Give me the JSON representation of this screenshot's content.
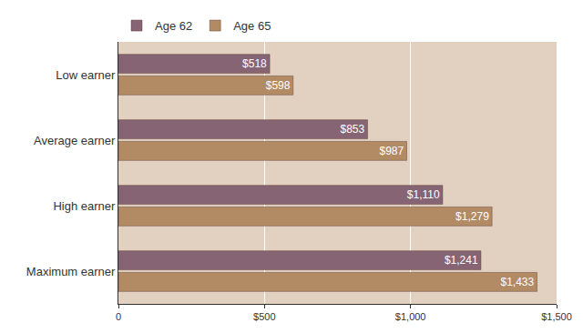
{
  "chart_data": {
    "type": "bar",
    "orientation": "horizontal",
    "categories": [
      "Low earner",
      "Average earner",
      "High earner",
      "Maximum earner"
    ],
    "series": [
      {
        "name": "Age 62",
        "color": "#866474",
        "values": [
          518,
          853,
          1110,
          1241
        ],
        "value_labels": [
          "$518",
          "$853",
          "$1,110",
          "$1,241"
        ]
      },
      {
        "name": "Age 65",
        "color": "#b28b65",
        "values": [
          598,
          987,
          1279,
          1433
        ],
        "value_labels": [
          "$598",
          "$987",
          "$1,279",
          "$1,433"
        ]
      }
    ],
    "xlim": [
      0,
      1500
    ],
    "xticks": [
      0,
      {
        "value": 500,
        "label": "$500"
      },
      {
        "value": 1000,
        "label": "$1,000"
      },
      {
        "value": 1500,
        "label": "$1,500"
      }
    ],
    "grid": true,
    "legend": "top left",
    "data_labels": true
  }
}
